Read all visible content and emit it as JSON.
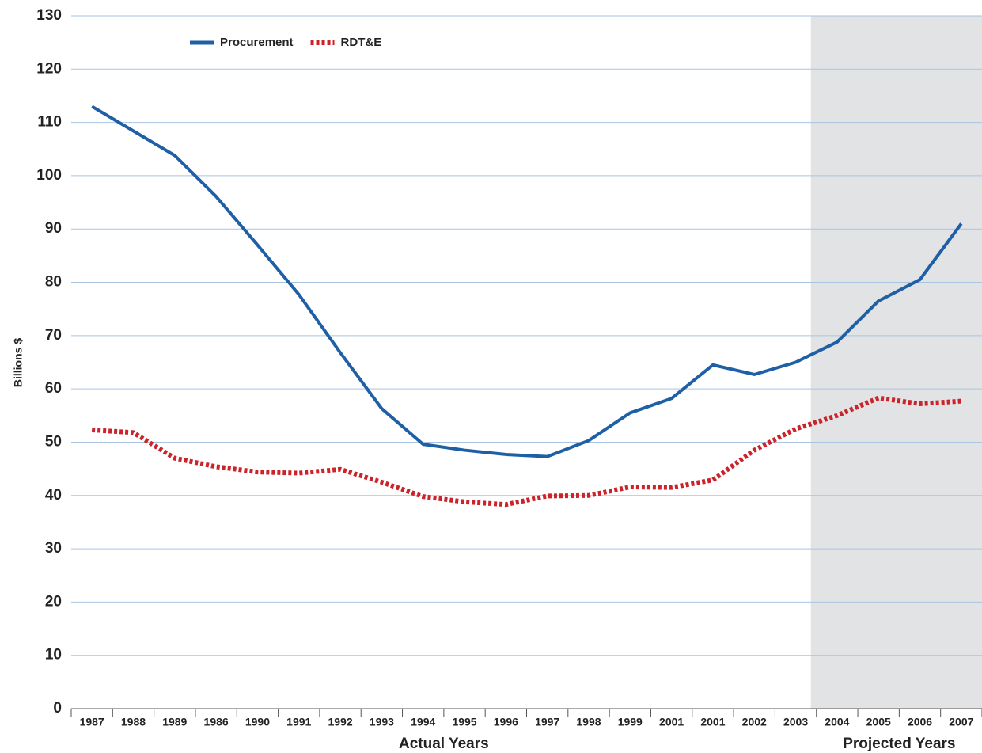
{
  "chart_data": {
    "type": "line",
    "y_label": "Billions $",
    "categories": [
      "1987",
      "1988",
      "1989",
      "1986",
      "1990",
      "1991",
      "1992",
      "1993",
      "1994",
      "1995",
      "1996",
      "1997",
      "1998",
      "1999",
      "2001",
      "2001",
      "2002",
      "2003",
      "2004",
      "2005",
      "2006",
      "2007"
    ],
    "series": [
      {
        "name": "Procurement",
        "color": "#1f5fa6",
        "dash": false,
        "values": [
          113,
          108.4,
          103.8,
          96.1,
          87,
          77.7,
          66.8,
          56.3,
          49.6,
          48.5,
          47.7,
          47.3,
          50.3,
          55.5,
          58.2,
          64.5,
          62.7,
          65,
          68.8,
          76.5,
          80.5,
          91
        ]
      },
      {
        "name": "RDT&E",
        "color": "#cc2229",
        "dash": true,
        "values": [
          52.3,
          51.8,
          47,
          45.4,
          44.4,
          44.2,
          44.9,
          42.5,
          39.8,
          38.8,
          38.3,
          39.9,
          40,
          41.6,
          41.5,
          42.9,
          48.5,
          52.5,
          55,
          58.3,
          57.2,
          57.7
        ]
      }
    ],
    "ylim": [
      0,
      130
    ],
    "yticks": [
      0,
      10,
      20,
      30,
      40,
      50,
      60,
      70,
      80,
      90,
      100,
      110,
      120,
      130
    ],
    "grid": true,
    "grid_color": "#a9c4e0",
    "legend": "top-left",
    "shade": {
      "from": "2004",
      "to": "2007",
      "color": "#e2e3e5"
    },
    "annotations": [
      "Actual Years",
      "Projected Years"
    ]
  }
}
